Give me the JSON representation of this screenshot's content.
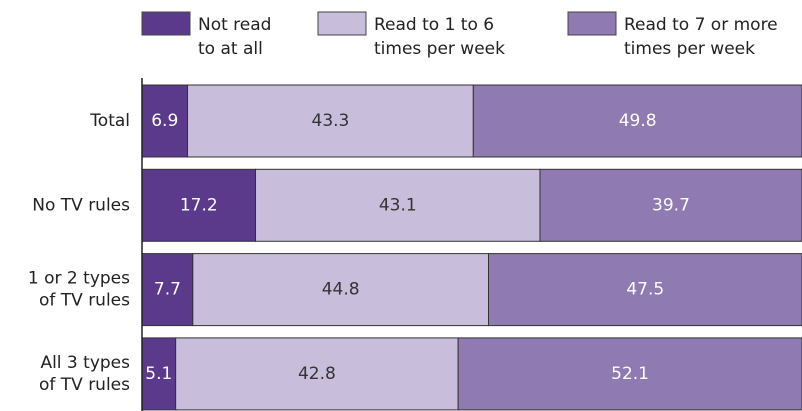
{
  "chart_data": {
    "type": "stacked_barh",
    "categories": [
      "Total",
      "No TV rules",
      "1 or 2 types\nof TV rules",
      "All 3 types\nof TV rules"
    ],
    "series": [
      {
        "name": "Not read\nto at all",
        "color": "#5b3a8c",
        "values": [
          6.9,
          17.2,
          7.7,
          5.1
        ]
      },
      {
        "name": "Read to 1 to 6\ntimes per week",
        "color": "#c8bedb",
        "values": [
          43.3,
          43.1,
          44.8,
          42.8
        ]
      },
      {
        "name": "Read to 7 or more\ntimes per week",
        "color": "#8f7ab1",
        "values": [
          49.8,
          39.7,
          47.5,
          52.1
        ]
      }
    ],
    "xlim": [
      0,
      100
    ]
  }
}
